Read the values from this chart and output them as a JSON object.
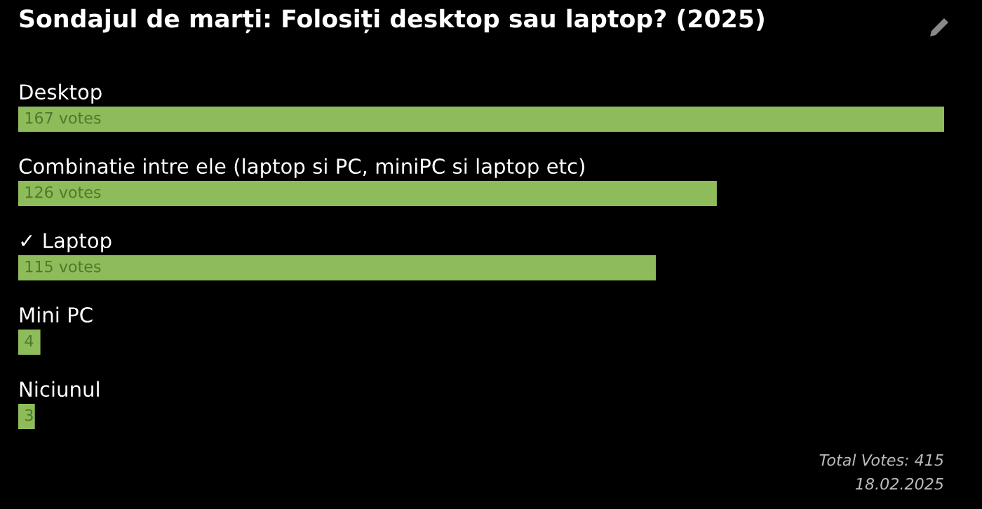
{
  "chart_data": {
    "type": "bar",
    "orientation": "horizontal",
    "title": "Sondajul de marți: Folosiți desktop sau laptop? (2025)",
    "categories": [
      "Desktop",
      "Combinatie intre ele (laptop si PC, miniPC si laptop etc)",
      "✓ Laptop",
      "Mini PC",
      "Niciunul"
    ],
    "values": [
      167,
      126,
      115,
      4,
      3
    ],
    "value_labels": [
      "167 votes",
      "126 votes",
      "115 votes",
      "4",
      "3"
    ],
    "color": "#8fbc5a",
    "annotations": [
      "Total Votes: 415",
      "18.02.2025"
    ]
  }
}
